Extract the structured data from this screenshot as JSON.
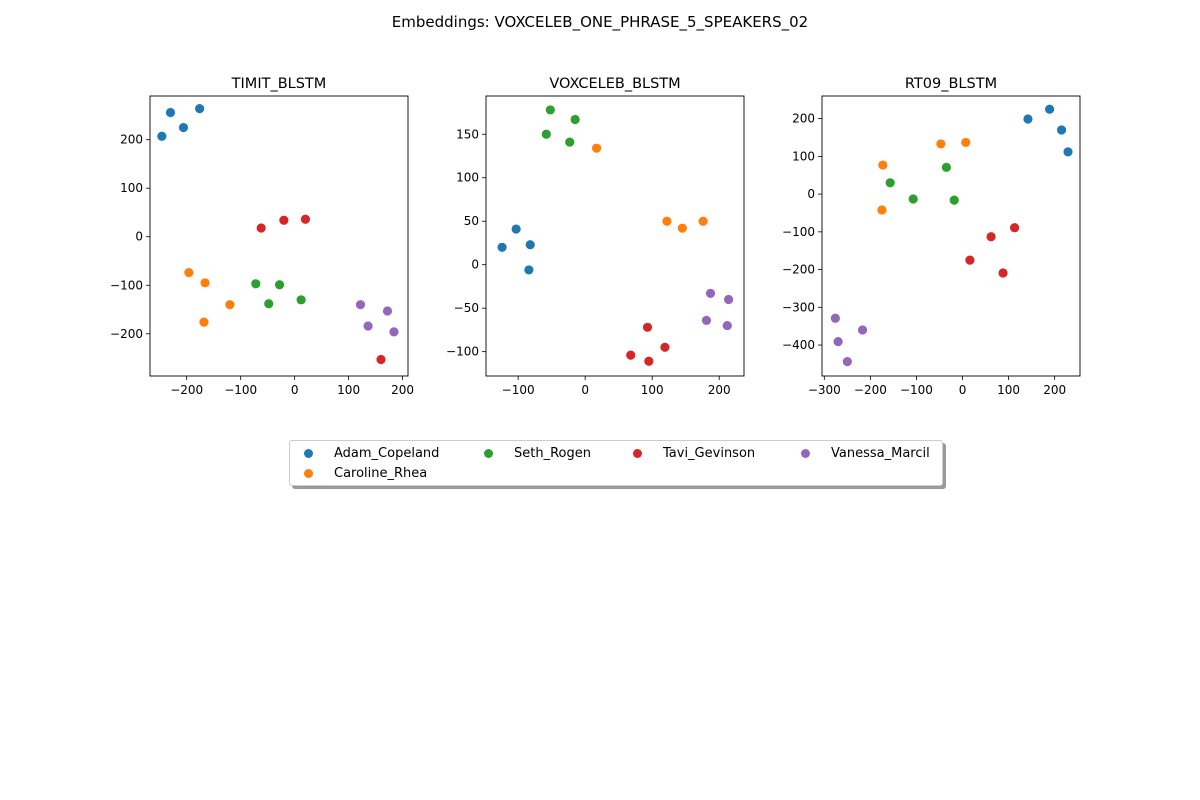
{
  "suptitle": "Embeddings: VOXCELEB_ONE_PHRASE_5_SPEAKERS_02",
  "legend": [
    {
      "name": "Adam_Copeland",
      "color": "#1f77b4"
    },
    {
      "name": "Caroline_Rhea",
      "color": "#ff7f0e"
    },
    {
      "name": "Seth_Rogen",
      "color": "#2ca02c"
    },
    {
      "name": "Tavi_Gevinson",
      "color": "#d62728"
    },
    {
      "name": "Vanessa_Marcil",
      "color": "#9467bd"
    }
  ],
  "chart_data": [
    {
      "type": "scatter",
      "title": "TIMIT_BLSTM",
      "xlim": [
        -268,
        210
      ],
      "ylim": [
        -287,
        290
      ],
      "xticks": [
        -200,
        -100,
        0,
        100,
        200
      ],
      "yticks": [
        -200,
        -100,
        0,
        100,
        200
      ],
      "series": [
        {
          "name": "Adam_Copeland",
          "color": "#1f77b4",
          "points": [
            [
              -246,
              207
            ],
            [
              -230,
              256
            ],
            [
              -206,
              225
            ],
            [
              -176,
              264
            ]
          ]
        },
        {
          "name": "Caroline_Rhea",
          "color": "#ff7f0e",
          "points": [
            [
              -196,
              -74
            ],
            [
              -166,
              -95
            ],
            [
              -120,
              -140
            ],
            [
              -168,
              -176
            ]
          ]
        },
        {
          "name": "Seth_Rogen",
          "color": "#2ca02c",
          "points": [
            [
              -72,
              -97
            ],
            [
              -28,
              -99
            ],
            [
              -48,
              -138
            ],
            [
              12,
              -130
            ]
          ]
        },
        {
          "name": "Tavi_Gevinson",
          "color": "#d62728",
          "points": [
            [
              -62,
              18
            ],
            [
              -20,
              34
            ],
            [
              20,
              36
            ],
            [
              160,
              -253
            ]
          ]
        },
        {
          "name": "Vanessa_Marcil",
          "color": "#9467bd",
          "points": [
            [
              122,
              -140
            ],
            [
              172,
              -153
            ],
            [
              136,
              -184
            ],
            [
              184,
              -196
            ]
          ]
        }
      ]
    },
    {
      "type": "scatter",
      "title": "VOXCELEB_BLSTM",
      "xlim": [
        -148,
        237
      ],
      "ylim": [
        -128,
        194
      ],
      "xticks": [
        -100,
        0,
        100,
        200
      ],
      "yticks": [
        -100,
        -50,
        0,
        50,
        100,
        150
      ],
      "series": [
        {
          "name": "Adam_Copeland",
          "color": "#1f77b4",
          "points": [
            [
              -124,
              20
            ],
            [
              -103,
              41
            ],
            [
              -82,
              23
            ],
            [
              -84,
              -6
            ]
          ]
        },
        {
          "name": "Caroline_Rhea",
          "color": "#ff7f0e",
          "points": [
            [
              17,
              134
            ],
            [
              122,
              50
            ],
            [
              145,
              42
            ],
            [
              176,
              50
            ]
          ]
        },
        {
          "name": "Seth_Rogen",
          "color": "#2ca02c",
          "points": [
            [
              -52,
              178
            ],
            [
              -15,
              167
            ],
            [
              -58,
              150
            ],
            [
              -23,
              141
            ]
          ]
        },
        {
          "name": "Tavi_Gevinson",
          "color": "#d62728",
          "points": [
            [
              93,
              -72
            ],
            [
              119,
              -95
            ],
            [
              68,
              -104
            ],
            [
              95,
              -111
            ]
          ]
        },
        {
          "name": "Vanessa_Marcil",
          "color": "#9467bd",
          "points": [
            [
              187,
              -33
            ],
            [
              214,
              -40
            ],
            [
              181,
              -64
            ],
            [
              212,
              -70
            ]
          ]
        }
      ]
    },
    {
      "type": "scatter",
      "title": "RT09_BLSTM",
      "xlim": [
        -305,
        255
      ],
      "ylim": [
        -482,
        260
      ],
      "xticks": [
        -300,
        -200,
        -100,
        0,
        100,
        200
      ],
      "yticks": [
        -400,
        -300,
        -200,
        -100,
        0,
        100,
        200
      ],
      "series": [
        {
          "name": "Adam_Copeland",
          "color": "#1f77b4",
          "points": [
            [
              142,
              199
            ],
            [
              189,
              225
            ],
            [
              215,
              170
            ],
            [
              229,
              112
            ]
          ]
        },
        {
          "name": "Caroline_Rhea",
          "color": "#ff7f0e",
          "points": [
            [
              -173,
              77
            ],
            [
              -47,
              133
            ],
            [
              7,
              137
            ],
            [
              -175,
              -42
            ]
          ]
        },
        {
          "name": "Seth_Rogen",
          "color": "#2ca02c",
          "points": [
            [
              -157,
              30
            ],
            [
              -35,
              71
            ],
            [
              -107,
              -13
            ],
            [
              -18,
              -16
            ]
          ]
        },
        {
          "name": "Tavi_Gevinson",
          "color": "#d62728",
          "points": [
            [
              62,
              -113
            ],
            [
              113,
              -89
            ],
            [
              16,
              -175
            ],
            [
              88,
              -209
            ]
          ]
        },
        {
          "name": "Vanessa_Marcil",
          "color": "#9467bd",
          "points": [
            [
              -276,
              -329
            ],
            [
              -217,
              -360
            ],
            [
              -270,
              -391
            ],
            [
              -250,
              -444
            ]
          ]
        }
      ]
    }
  ]
}
